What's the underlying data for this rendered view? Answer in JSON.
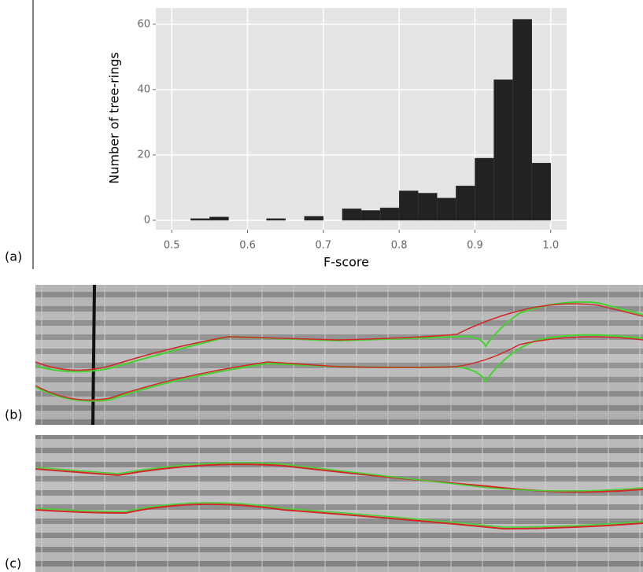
{
  "chart_data": {
    "type": "histogram",
    "x_label": "F-score",
    "y_label": "Number of tree-rings",
    "bins": [
      0.525,
      0.55,
      0.575,
      0.6,
      0.625,
      0.65,
      0.675,
      0.7,
      0.725,
      0.75,
      0.775,
      0.8,
      0.825,
      0.85,
      0.875,
      0.9,
      0.925,
      0.95,
      0.975,
      1.0
    ],
    "values": [
      0.5,
      1,
      0,
      0,
      0.5,
      0,
      1.2,
      0,
      3.5,
      3,
      3.8,
      9,
      8.3,
      6.8,
      10.5,
      19,
      43,
      61.5,
      17.5
    ],
    "color": "#222222",
    "xlim": [
      0.479,
      1.021
    ],
    "ylim": [
      -2.9,
      65
    ],
    "xticks": [
      0.5,
      0.6,
      0.7,
      0.8,
      0.9,
      {
        "value": 1,
        "label": "1.0"
      }
    ],
    "yticks": [
      0,
      20,
      40,
      60
    ],
    "grid": true
  },
  "panels": [
    "(a)",
    "(b)",
    "(c)"
  ]
}
